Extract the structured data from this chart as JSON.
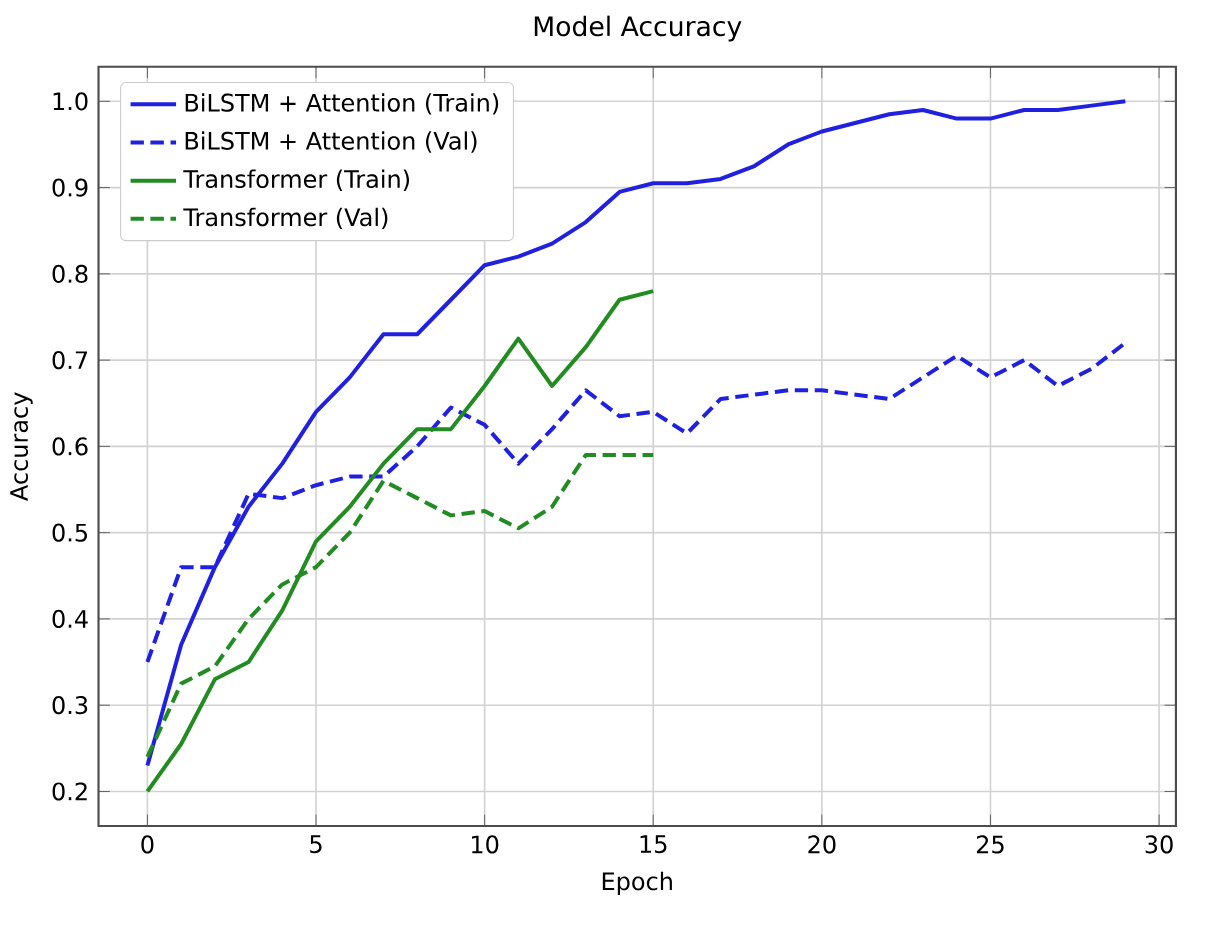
{
  "chart_data": {
    "type": "line",
    "title": "Model Accuracy",
    "xlabel": "Epoch",
    "ylabel": "Accuracy",
    "xlim": [
      -1.45,
      30.5
    ],
    "ylim": [
      0.16,
      1.04
    ],
    "xticks": [
      0,
      5,
      10,
      15,
      20,
      25,
      30
    ],
    "yticks": [
      {
        "value": 0.2,
        "label": "0.2"
      },
      {
        "value": 0.3,
        "label": "0.3"
      },
      {
        "value": 0.4,
        "label": "0.4"
      },
      {
        "value": 0.5,
        "label": "0.5"
      },
      {
        "value": 0.6,
        "label": "0.6"
      },
      {
        "value": 0.7,
        "label": "0.7"
      },
      {
        "value": 0.8,
        "label": "0.8"
      },
      {
        "value": 0.9,
        "label": "0.9"
      },
      {
        "value": 1.0,
        "label": "1.0"
      }
    ],
    "grid": true,
    "legend": "top left",
    "marker": "none",
    "series": [
      {
        "name": "BiLSTM + Attention (Train)",
        "color": "#2020e0",
        "line_style": "solid",
        "x": [
          0,
          1,
          2,
          3,
          4,
          5,
          6,
          7,
          8,
          9,
          10,
          11,
          12,
          13,
          14,
          15,
          16,
          17,
          18,
          19,
          20,
          21,
          22,
          23,
          24,
          25,
          26,
          27,
          28,
          29
        ],
        "values": [
          0.23,
          0.37,
          0.46,
          0.53,
          0.58,
          0.64,
          0.68,
          0.73,
          0.73,
          0.77,
          0.81,
          0.82,
          0.835,
          0.86,
          0.895,
          0.905,
          0.905,
          0.91,
          0.925,
          0.95,
          0.965,
          0.975,
          0.985,
          0.99,
          0.98,
          0.98,
          0.99,
          0.99,
          0.995,
          1.0
        ]
      },
      {
        "name": "BiLSTM + Attention (Val)",
        "color": "#2020e0",
        "line_style": "dashed",
        "x": [
          0,
          1,
          2,
          3,
          4,
          5,
          6,
          7,
          8,
          9,
          10,
          11,
          12,
          13,
          14,
          15,
          16,
          17,
          18,
          19,
          20,
          21,
          22,
          23,
          24,
          25,
          26,
          27,
          28,
          29
        ],
        "values": [
          0.35,
          0.46,
          0.46,
          0.545,
          0.54,
          0.555,
          0.565,
          0.565,
          0.6,
          0.645,
          0.625,
          0.58,
          0.62,
          0.665,
          0.635,
          0.64,
          0.615,
          0.655,
          0.66,
          0.665,
          0.665,
          0.66,
          0.655,
          0.68,
          0.705,
          0.68,
          0.7,
          0.67,
          0.69,
          0.72
        ]
      },
      {
        "name": "Transformer (Train)",
        "color": "#228b22",
        "line_style": "solid",
        "x": [
          0,
          1,
          2,
          3,
          4,
          5,
          6,
          7,
          8,
          9,
          10,
          11,
          12,
          13,
          14,
          15
        ],
        "values": [
          0.2,
          0.255,
          0.33,
          0.35,
          0.41,
          0.49,
          0.53,
          0.58,
          0.62,
          0.62,
          0.67,
          0.725,
          0.67,
          0.715,
          0.77,
          0.78
        ]
      },
      {
        "name": "Transformer (Val)",
        "color": "#228b22",
        "line_style": "dashed",
        "x": [
          0,
          1,
          2,
          3,
          4,
          5,
          6,
          7,
          8,
          9,
          10,
          11,
          12,
          13,
          14,
          15
        ],
        "values": [
          0.24,
          0.325,
          0.345,
          0.4,
          0.44,
          0.46,
          0.5,
          0.56,
          0.54,
          0.52,
          0.525,
          0.505,
          0.53,
          0.59,
          0.59,
          0.59
        ]
      }
    ]
  }
}
